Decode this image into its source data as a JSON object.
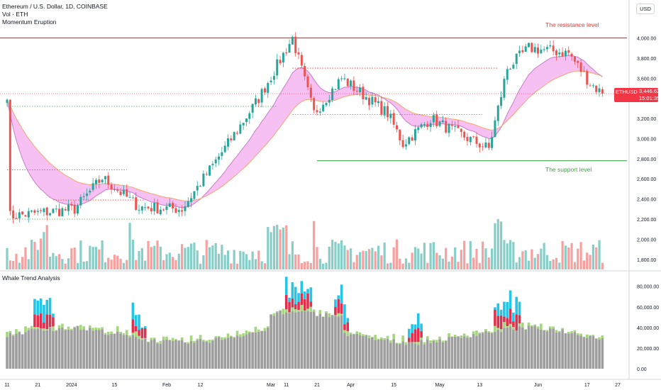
{
  "header": {
    "symbol_line": "Ethereum / U.S. Dollar, 1D, COINBASE",
    "volume_line": "Vol · ETH",
    "indicator_line": "Momentum Eruption",
    "lower_pane_title": "Whale Trend Analysis",
    "currency_button": "USD"
  },
  "price_badge": {
    "symbol": "ETHUSD",
    "price": "3,446.62",
    "countdown": "15:01:35",
    "color": "#f23645"
  },
  "annotations": {
    "resistance": "The resistance level",
    "support": "The support level"
  },
  "colors": {
    "up": "#26a69a",
    "down": "#ef5350",
    "resistance": "#e53935",
    "support": "#43a047",
    "cloud_fill": "#f4b6f0",
    "cloud_line": "#c77dc9",
    "whale_grey": "#9e9e9e",
    "whale_green": "#a5d67b",
    "whale_red": "#e0304d",
    "whale_cyan": "#24c6e8"
  },
  "chart_data": [
    {
      "type": "candlestick",
      "title": "Ethereum / U.S. Dollar, 1D, COINBASE",
      "x_ticks": [
        "11",
        "21",
        "2024",
        "15",
        "Feb",
        "12",
        "Mar",
        "11",
        "21",
        "Apr",
        "15",
        "May",
        "13",
        "Jun",
        "17",
        "27"
      ],
      "y_ticks": [
        "1,800.00",
        "2,000.00",
        "2,200.00",
        "2,400.00",
        "2,600.00",
        "2,800.00",
        "3,000.00",
        "3,200.00",
        "3,400.00",
        "3,600.00",
        "3,800.00",
        "4,000.00"
      ],
      "ylim": [
        1700,
        4250
      ],
      "key_points": [
        {
          "date": "Dec 11",
          "close": 2230
        },
        {
          "date": "Jan 1",
          "close": 2300
        },
        {
          "date": "Jan 10",
          "close": 2610
        },
        {
          "date": "Jan 22",
          "close": 2320
        },
        {
          "date": "Feb 5",
          "close": 2300
        },
        {
          "date": "Feb 20",
          "close": 2950
        },
        {
          "date": "Mar 1",
          "close": 3400
        },
        {
          "date": "Mar 12",
          "close": 4000
        },
        {
          "date": "Mar 19",
          "close": 3250
        },
        {
          "date": "Mar 28",
          "close": 3600
        },
        {
          "date": "Apr 12",
          "close": 3250
        },
        {
          "date": "Apr 17",
          "close": 2950
        },
        {
          "date": "Apr 26",
          "close": 3200
        },
        {
          "date": "May 5",
          "close": 3050
        },
        {
          "date": "May 15",
          "close": 2900
        },
        {
          "date": "May 21",
          "close": 3700
        },
        {
          "date": "May 28",
          "close": 3900
        },
        {
          "date": "Jun 10",
          "close": 3850
        },
        {
          "date": "Jun 17",
          "close": 3550
        },
        {
          "date": "Jun 21",
          "close": 3446.62
        }
      ],
      "horizontal_lines": [
        {
          "label": "The resistance level",
          "value": 4000
        },
        {
          "label": "The support level",
          "value": 2780
        }
      ],
      "last_price": 3446.62
    },
    {
      "type": "stacked_bar",
      "title": "Whale Trend Analysis",
      "y_ticks": [
        "0.00",
        "20,000.00",
        "40,000.00",
        "60,000.00",
        "80,000.00"
      ],
      "ylim": [
        0,
        86000
      ]
    }
  ]
}
